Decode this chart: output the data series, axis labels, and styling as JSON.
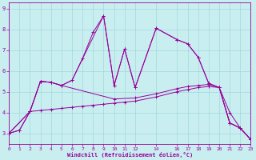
{
  "xlabel": "Windchill (Refroidissement éolien,°C)",
  "xlim": [
    0,
    23
  ],
  "ylim": [
    2.5,
    9.3
  ],
  "bg_color": "#c8eef0",
  "line_color": "#990099",
  "grid_color": "#a0d8dc",
  "xticks": [
    0,
    1,
    2,
    3,
    4,
    5,
    6,
    7,
    8,
    9,
    10,
    11,
    12,
    14,
    16,
    17,
    18,
    19,
    20,
    21,
    22,
    23
  ],
  "yticks": [
    3,
    4,
    5,
    6,
    7,
    8,
    9
  ],
  "lines": [
    {
      "x": [
        0,
        1,
        2,
        3,
        4,
        5,
        6,
        7,
        8,
        9,
        10,
        11,
        12,
        14,
        16,
        17,
        18,
        19,
        20,
        21,
        22,
        23
      ],
      "y": [
        3.0,
        3.15,
        4.05,
        5.5,
        5.45,
        5.3,
        5.55,
        6.6,
        7.85,
        8.65,
        5.3,
        7.05,
        5.2,
        8.05,
        7.5,
        7.3,
        6.65,
        5.4,
        5.2,
        3.5,
        3.25,
        2.7
      ]
    },
    {
      "x": [
        0,
        2,
        3,
        4,
        5,
        10,
        12,
        14,
        16,
        17,
        18,
        19,
        20,
        21,
        22,
        23
      ],
      "y": [
        3.0,
        4.05,
        5.5,
        5.45,
        5.3,
        4.65,
        4.7,
        4.9,
        5.15,
        5.25,
        5.3,
        5.35,
        5.2,
        3.5,
        3.25,
        2.7
      ]
    },
    {
      "x": [
        0,
        1,
        2,
        3,
        4,
        5,
        6,
        7,
        8,
        9,
        10,
        11,
        12,
        14,
        16,
        17,
        18,
        19,
        20,
        21,
        22,
        23
      ],
      "y": [
        3.0,
        3.15,
        4.05,
        4.1,
        4.15,
        4.2,
        4.25,
        4.3,
        4.35,
        4.4,
        4.45,
        4.5,
        4.55,
        4.75,
        5.0,
        5.1,
        5.2,
        5.25,
        5.2,
        4.0,
        3.25,
        2.7
      ]
    },
    {
      "x": [
        0,
        2,
        3,
        4,
        5,
        6,
        9,
        10,
        11,
        12,
        14,
        16,
        17,
        18,
        19,
        20,
        21,
        22,
        23
      ],
      "y": [
        3.0,
        4.05,
        5.5,
        5.45,
        5.3,
        5.55,
        8.65,
        5.3,
        7.05,
        5.2,
        8.05,
        7.5,
        7.3,
        6.65,
        5.4,
        5.2,
        3.5,
        3.25,
        2.7
      ]
    }
  ]
}
